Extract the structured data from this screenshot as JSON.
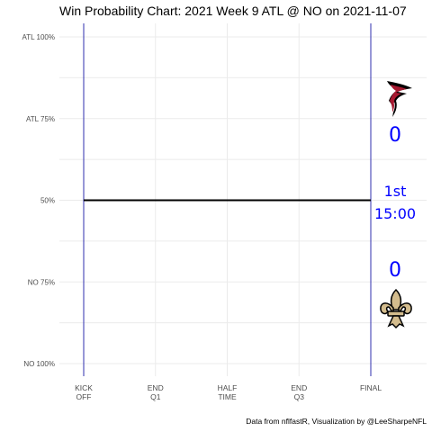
{
  "chart_data": {
    "type": "line",
    "title": "Win Probability Chart: 2021 Week 9 ATL @ NO on 2021-11-07",
    "y_tick_labels": [
      "ATL 100%",
      "ATL 75%",
      "50%",
      "NO 75%",
      "NO 100%"
    ],
    "y_tick_values": [
      1.0,
      0.75,
      0.5,
      0.25,
      0.0
    ],
    "ylim": [
      0,
      1
    ],
    "x_tick_labels": [
      [
        "KICK",
        "OFF"
      ],
      [
        "END",
        "Q1"
      ],
      [
        "HALF",
        "TIME"
      ],
      [
        "END",
        "Q3"
      ],
      [
        "FINAL"
      ]
    ],
    "x_tick_values": [
      0,
      15,
      30,
      45,
      60
    ],
    "xlim": [
      0,
      60
    ],
    "series": [
      {
        "color": "#000000",
        "x": [
          0,
          60
        ],
        "y": [
          0.5,
          0.5
        ]
      }
    ],
    "reference_lines_x": [
      0,
      60
    ],
    "reference_line_color": "#0000a0",
    "away_team": {
      "name": "ATL",
      "score": "0",
      "logo": "falcons-logo",
      "color": "#a71930"
    },
    "home_team": {
      "name": "NO",
      "score": "0",
      "logo": "saints-fleur-de-lis-logo",
      "color": "#d3bc8d"
    },
    "game_status": {
      "quarter": "1st",
      "clock": "15:00"
    },
    "annotation_color": "#0000ff",
    "grid": true,
    "caption": "Data from nflfastR, Visualization by @LeeSharpeNFL"
  }
}
